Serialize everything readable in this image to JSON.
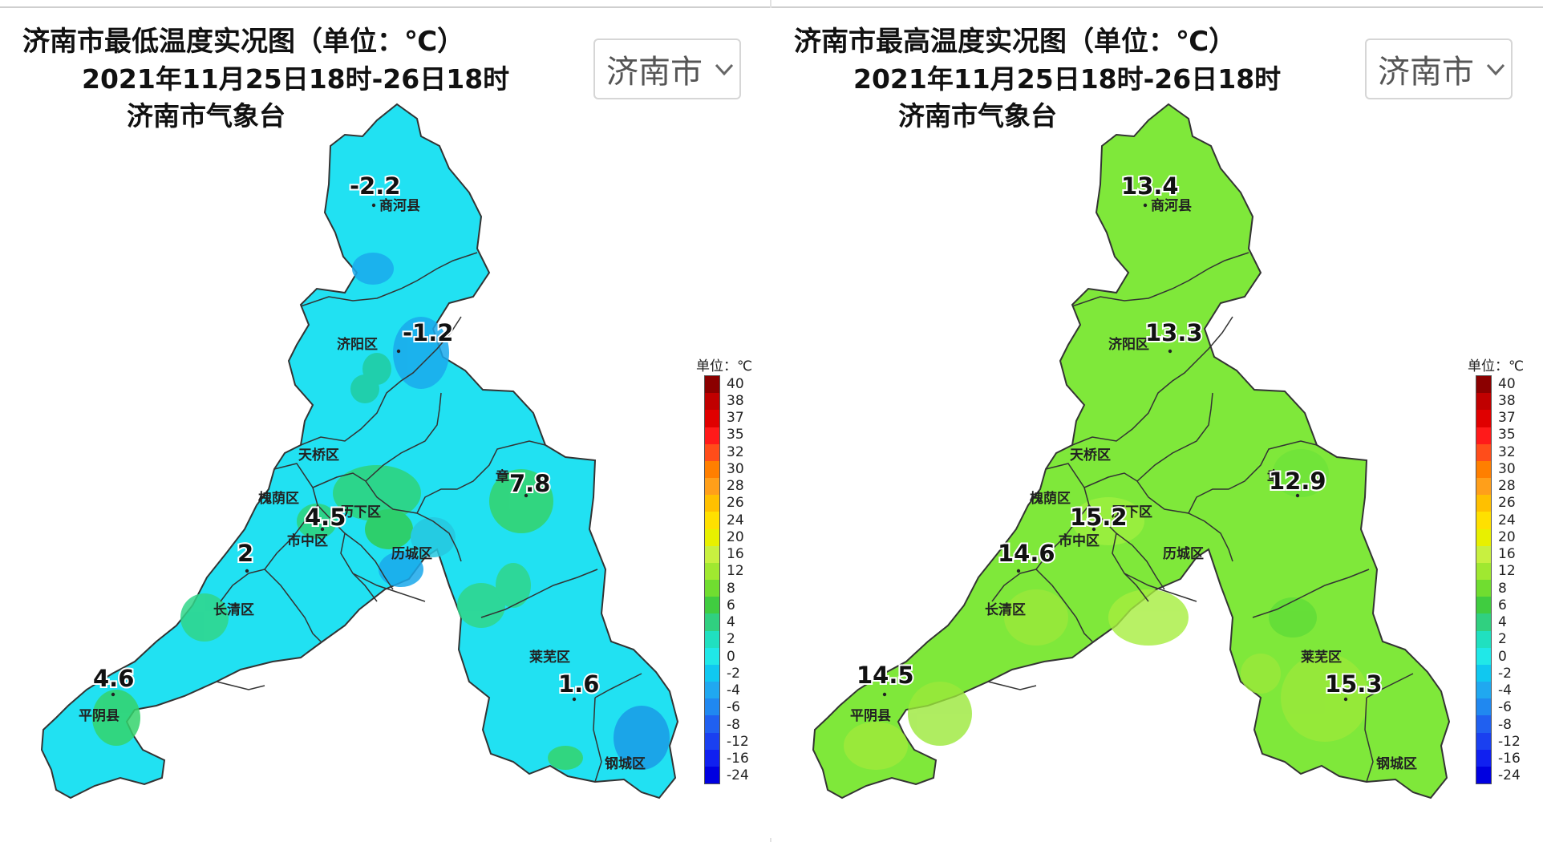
{
  "legend": {
    "unit_label": "单位：℃",
    "labels": [
      "40",
      "38",
      "37",
      "35",
      "32",
      "30",
      "28",
      "26",
      "24",
      "20",
      "16",
      "12",
      "8",
      "6",
      "4",
      "2",
      "0",
      "-2",
      "-4",
      "-6",
      "-8",
      "-12",
      "-16",
      "-24"
    ],
    "colors": [
      "#8b0000",
      "#c00000",
      "#e00000",
      "#ff1a1a",
      "#ff4d1a",
      "#ff7f00",
      "#ff9f1a",
      "#ffc000",
      "#ffe000",
      "#e8f000",
      "#c8f040",
      "#a0e830",
      "#70dd30",
      "#40cc40",
      "#30d080",
      "#20e0c0",
      "#20e8e8",
      "#10c8f0",
      "#20a8f0",
      "#2088f0",
      "#2060f0",
      "#1a40f0",
      "#1020f0",
      "#0000e0"
    ]
  },
  "panels": [
    {
      "id": "min",
      "title": "济南市最低温度实况图（单位：℃）",
      "subtitle": "2021年11月25日18时-26日18时",
      "agency": "济南市气象台",
      "dropdown": "济南市",
      "colors": {
        "base": "#21e1f2",
        "stroke": "#333333"
      },
      "map_labels": [
        "商河县",
        "济阳区",
        "天桥区",
        "槐荫区",
        "历下区",
        "市中区",
        "历城区",
        "长清区",
        "莱芜区",
        "钢城区",
        "平阴县",
        "章"
      ],
      "values": {
        "shanghe": "-2.2",
        "jiyang": "-1.2",
        "zhangqiu": "7.8",
        "lixia": "4.5",
        "changqing": "2",
        "pingyin": "4.6",
        "laiwu": "1.6"
      }
    },
    {
      "id": "max",
      "title": "济南市最高温度实况图（单位：℃）",
      "subtitle": "2021年11月25日18时-26日18时",
      "agency": "济南市气象台",
      "dropdown": "济南市",
      "colors": {
        "base": "#7fe83a",
        "stroke": "#333333"
      },
      "map_labels": [
        "商河县",
        "济阳区",
        "天桥区",
        "槐荫区",
        "历下区",
        "市中区",
        "历城区",
        "长清区",
        "莱芜区",
        "钢城区",
        "平阴县",
        "章"
      ],
      "values": {
        "shanghe": "13.4",
        "jiyang": "13.3",
        "zhangqiu": "12.9",
        "lixia": "15.2",
        "changqing": "14.6",
        "pingyin": "14.5",
        "laiwu": "15.3"
      }
    }
  ]
}
